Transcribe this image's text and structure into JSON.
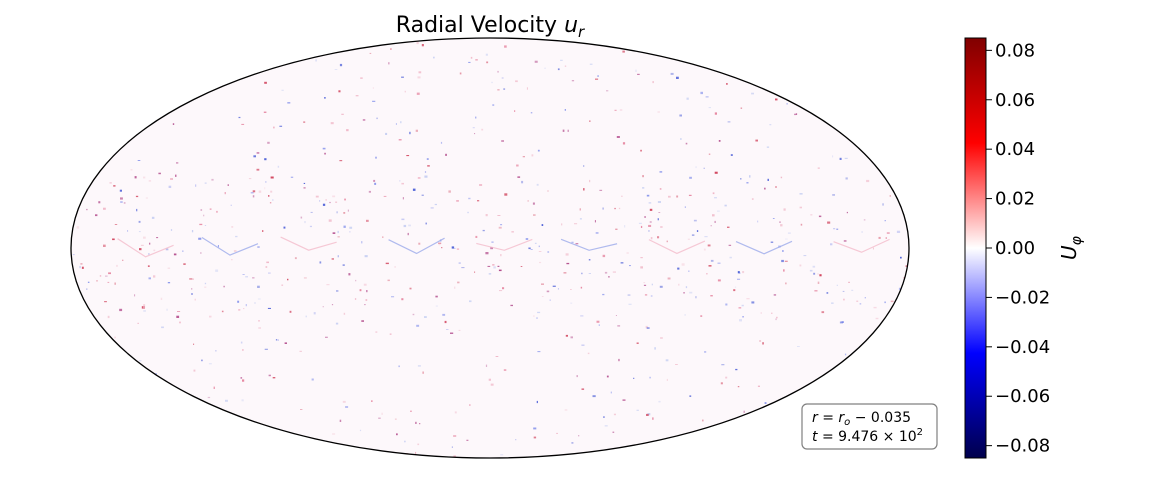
{
  "chart_data": {
    "type": "heatmap",
    "projection": "mollweide",
    "title": "Radial Velocity",
    "title_symbol": "u",
    "title_subscript": "r",
    "colormap": "seismic",
    "colormap_stops": [
      "#00004c",
      "#0000ff",
      "#ffffff",
      "#ff0000",
      "#800000"
    ],
    "colorbar": {
      "label": "U",
      "label_subscript": "φ",
      "vmin": -0.085,
      "vmax": 0.085,
      "ticks": [
        {
          "value": 0.08,
          "label": "0.08"
        },
        {
          "value": 0.06,
          "label": "0.06"
        },
        {
          "value": 0.04,
          "label": "0.04"
        },
        {
          "value": 0.02,
          "label": "0.02"
        },
        {
          "value": 0.0,
          "label": "0.00"
        },
        {
          "value": -0.02,
          "label": "−0.02"
        },
        {
          "value": -0.04,
          "label": "−0.04"
        },
        {
          "value": -0.06,
          "label": "−0.06"
        },
        {
          "value": -0.08,
          "label": "−0.08"
        }
      ]
    },
    "annotation": {
      "line1_lhs": "r",
      "line1_eq": " = ",
      "line1_rhs": "r",
      "line1_rhs_sub": "o",
      "line1_rest": " −  0.035",
      "line2_lhs": "t",
      "line2_eq": " = 9.476 × 10",
      "line2_exp": "2"
    }
  }
}
